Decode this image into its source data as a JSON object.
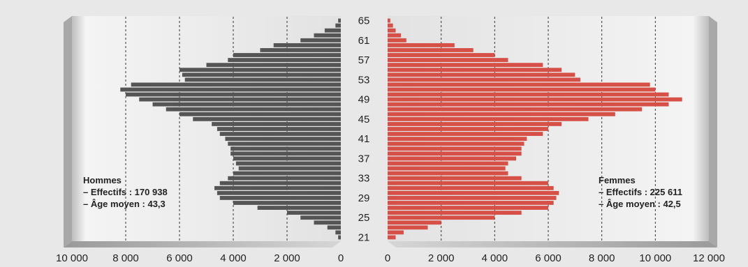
{
  "chart_data": {
    "type": "bar",
    "title": "",
    "age_ticks": [
      "21",
      "25",
      "29",
      "33",
      "37",
      "41",
      "45",
      "49",
      "53",
      "57",
      "61",
      "65"
    ],
    "ages": [
      21,
      22,
      23,
      24,
      25,
      26,
      27,
      28,
      29,
      30,
      31,
      32,
      33,
      34,
      35,
      36,
      37,
      38,
      39,
      40,
      41,
      42,
      43,
      44,
      45,
      46,
      47,
      48,
      49,
      50,
      51,
      52,
      53,
      54,
      55,
      56,
      57,
      58,
      59,
      60,
      61,
      62,
      63,
      64,
      65
    ],
    "series": [
      {
        "name": "Hommes",
        "color": "#555555",
        "values": [
          100,
          200,
          500,
          1000,
          1500,
          2000,
          3100,
          4000,
          4500,
          4600,
          4700,
          4500,
          4200,
          4000,
          3800,
          3900,
          4000,
          4100,
          4100,
          4200,
          4300,
          4500,
          4600,
          4800,
          5500,
          6000,
          6500,
          7000,
          7500,
          8000,
          8200,
          7800,
          5800,
          5900,
          6000,
          5000,
          4200,
          4000,
          3000,
          2500,
          1500,
          1000,
          600,
          200,
          100
        ]
      },
      {
        "name": "Femmes",
        "color": "#d65048",
        "values": [
          300,
          600,
          1500,
          2000,
          4000,
          5000,
          6000,
          6200,
          6300,
          6400,
          6200,
          6000,
          5000,
          4500,
          4400,
          4500,
          4800,
          5000,
          5000,
          5100,
          5200,
          5800,
          6000,
          6500,
          7500,
          8500,
          9500,
          10500,
          11000,
          10500,
          10000,
          9800,
          7200,
          7000,
          6500,
          5800,
          4500,
          4000,
          3200,
          2500,
          700,
          500,
          300,
          200,
          100
        ]
      }
    ],
    "left_axis": {
      "ticks": [
        "10 000",
        "8 000",
        "6 000",
        "4 000",
        "2 000",
        "0"
      ],
      "max": 10000
    },
    "right_axis": {
      "ticks": [
        "0",
        "2 000",
        "4 000",
        "6 000",
        "8 000",
        "10 000",
        "12 000"
      ],
      "max": 12000
    },
    "grid": true
  },
  "legends": {
    "hommes": {
      "title": "Hommes",
      "line1": "– Effectifs : 170 938",
      "line2": "– Âge moyen : 43,3"
    },
    "femmes": {
      "title": "Femmes",
      "line1": "– Effectifs : 225 611",
      "line2": "– Âge moyen : 42,5"
    }
  }
}
